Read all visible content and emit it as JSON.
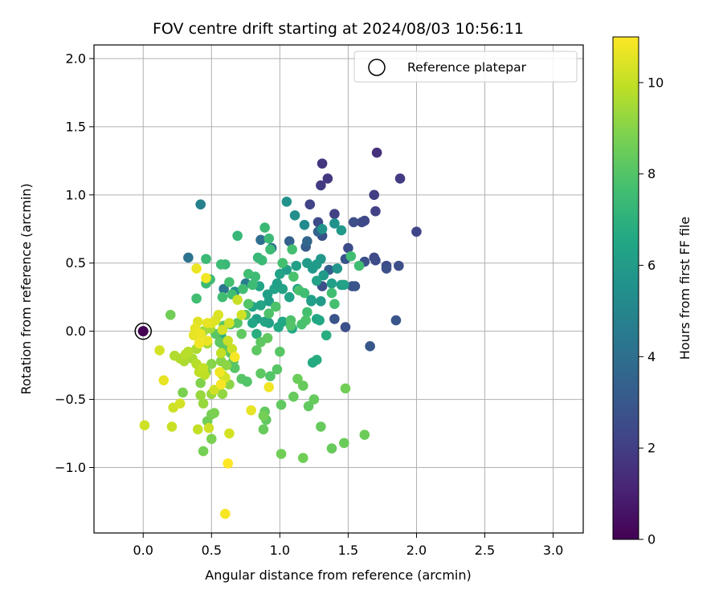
{
  "chart_data": {
    "type": "scatter",
    "title": "FOV centre drift starting at 2024/08/03 10:56:11",
    "xlabel": "Angular distance from reference (arcmin)",
    "ylabel": "Rotation from reference (arcmin)",
    "xlim": [
      -0.36,
      3.22
    ],
    "ylim": [
      -1.48,
      2.1
    ],
    "xticks": [
      0.0,
      0.5,
      1.0,
      1.5,
      2.0,
      2.5,
      3.0
    ],
    "xtick_labels": [
      "0.0",
      "0.5",
      "1.0",
      "1.5",
      "2.0",
      "2.5",
      "3.0"
    ],
    "yticks": [
      -1.0,
      -0.5,
      0.0,
      0.5,
      1.0,
      1.5,
      2.0
    ],
    "ytick_labels": [
      "−1.0",
      "−0.5",
      "0.0",
      "0.5",
      "1.0",
      "1.5",
      "2.0"
    ],
    "grid": true,
    "legend": {
      "position": "top-right",
      "entries": [
        "Reference platepar"
      ]
    },
    "colorbar": {
      "label": "Hours from first FF file",
      "range": [
        0,
        11
      ],
      "ticks": [
        0,
        2,
        4,
        6,
        8,
        10
      ],
      "tick_labels": [
        "0",
        "2",
        "4",
        "6",
        "8",
        "10"
      ],
      "colormap": "viridis"
    },
    "reference_point": {
      "x": 0.0,
      "y": 0.0,
      "hours": 0.0
    },
    "points": [
      [
        1.71,
        1.31,
        1.5
      ],
      [
        1.31,
        1.23,
        1.7
      ],
      [
        1.88,
        1.12,
        1.9
      ],
      [
        1.35,
        1.12,
        1.8
      ],
      [
        1.69,
        1.0,
        2.0
      ],
      [
        1.3,
        1.07,
        1.9
      ],
      [
        1.7,
        0.88,
        2.1
      ],
      [
        1.22,
        0.93,
        2.2
      ],
      [
        2.0,
        0.73,
        2.3
      ],
      [
        1.4,
        0.86,
        2.1
      ],
      [
        1.62,
        0.81,
        2.4
      ],
      [
        1.6,
        0.8,
        2.4
      ],
      [
        1.54,
        0.8,
        2.6
      ],
      [
        1.28,
        0.8,
        2.5
      ],
      [
        1.31,
        0.7,
        2.7
      ],
      [
        1.5,
        0.61,
        2.5
      ],
      [
        1.69,
        0.54,
        2.4
      ],
      [
        1.7,
        0.52,
        2.5
      ],
      [
        1.87,
        0.48,
        2.6
      ],
      [
        1.78,
        0.48,
        2.5
      ],
      [
        1.78,
        0.46,
        2.7
      ],
      [
        1.62,
        0.51,
        2.7
      ],
      [
        1.48,
        0.53,
        2.8
      ],
      [
        1.55,
        0.33,
        2.9
      ],
      [
        1.53,
        0.33,
        2.9
      ],
      [
        1.31,
        0.33,
        2.7
      ],
      [
        1.4,
        0.09,
        2.8
      ],
      [
        1.48,
        0.03,
        2.7
      ],
      [
        1.85,
        0.08,
        2.9
      ],
      [
        1.66,
        -0.11,
        3.0
      ],
      [
        1.36,
        0.45,
        3.3
      ],
      [
        1.19,
        0.62,
        3.2
      ],
      [
        1.07,
        0.66,
        3.4
      ],
      [
        1.28,
        0.73,
        3.5
      ],
      [
        1.2,
        0.66,
        3.6
      ],
      [
        0.86,
        0.67,
        4.0
      ],
      [
        0.94,
        0.61,
        4.2
      ],
      [
        0.33,
        0.54,
        4.2
      ],
      [
        0.59,
        0.31,
        4.3
      ],
      [
        0.75,
        0.35,
        4.6
      ],
      [
        0.42,
        0.93,
        4.8
      ],
      [
        1.18,
        0.78,
        5.2
      ],
      [
        1.4,
        0.79,
        5.5
      ],
      [
        1.11,
        0.85,
        5.4
      ],
      [
        1.05,
        0.95,
        5.6
      ],
      [
        1.45,
        0.74,
        5.9
      ],
      [
        1.31,
        0.75,
        5.6
      ],
      [
        0.67,
        0.29,
        5.4
      ],
      [
        1.42,
        0.46,
        5.7
      ],
      [
        1.3,
        0.53,
        5.8
      ],
      [
        1.27,
        0.49,
        6.0
      ],
      [
        1.24,
        0.46,
        5.9
      ],
      [
        1.32,
        0.41,
        5.9
      ],
      [
        1.2,
        0.5,
        6.0
      ],
      [
        1.12,
        0.48,
        6.2
      ],
      [
        1.05,
        0.45,
        6.1
      ],
      [
        1.0,
        0.42,
        6.3
      ],
      [
        1.27,
        0.37,
        6.3
      ],
      [
        1.13,
        0.31,
        6.2
      ],
      [
        1.07,
        0.25,
        6.3
      ],
      [
        1.23,
        0.23,
        6.3
      ],
      [
        1.3,
        0.22,
        6.0
      ],
      [
        1.38,
        0.35,
        6.2
      ],
      [
        1.45,
        0.34,
        6.1
      ],
      [
        1.47,
        0.34,
        6.3
      ],
      [
        1.23,
        0.22,
        6.2
      ],
      [
        1.02,
        0.31,
        6.3
      ],
      [
        0.96,
        0.31,
        6.3
      ],
      [
        0.98,
        0.35,
        6.2
      ],
      [
        0.85,
        0.33,
        6.4
      ],
      [
        0.91,
        0.27,
        6.2
      ],
      [
        0.92,
        0.22,
        6.1
      ],
      [
        0.86,
        0.19,
        6.4
      ],
      [
        0.8,
        0.18,
        6.5
      ],
      [
        0.83,
        0.09,
        6.1
      ],
      [
        0.92,
        0.06,
        6.3
      ],
      [
        0.89,
        0.07,
        6.4
      ],
      [
        0.8,
        0.06,
        6.5
      ],
      [
        1.02,
        0.07,
        6.5
      ],
      [
        0.99,
        0.03,
        6.6
      ],
      [
        1.09,
        0.02,
        6.6
      ],
      [
        1.27,
        0.09,
        6.5
      ],
      [
        1.29,
        0.08,
        6.6
      ],
      [
        1.27,
        -0.21,
        6.8
      ],
      [
        1.24,
        -0.23,
        6.7
      ],
      [
        1.34,
        -0.03,
        6.8
      ],
      [
        0.83,
        -0.02,
        6.9
      ],
      [
        0.57,
        -0.03,
        6.9
      ],
      [
        0.69,
        0.7,
        7.3
      ],
      [
        0.89,
        0.76,
        7.4
      ],
      [
        0.92,
        0.68,
        7.4
      ],
      [
        0.93,
        0.6,
        7.5
      ],
      [
        0.87,
        0.52,
        7.4
      ],
      [
        0.84,
        0.54,
        7.3
      ],
      [
        0.6,
        0.49,
        7.3
      ],
      [
        0.57,
        0.49,
        7.5
      ],
      [
        0.46,
        0.53,
        7.4
      ],
      [
        0.49,
        0.38,
        7.5
      ],
      [
        0.46,
        0.35,
        7.4
      ],
      [
        0.39,
        0.24,
        7.6
      ],
      [
        0.77,
        0.42,
        7.6
      ],
      [
        0.82,
        0.4,
        7.5
      ],
      [
        0.8,
        0.34,
        7.5
      ],
      [
        0.73,
        0.31,
        7.6
      ],
      [
        0.65,
        0.27,
        7.6
      ],
      [
        0.58,
        0.25,
        7.6
      ],
      [
        0.63,
        0.36,
        7.7
      ],
      [
        1.09,
        0.6,
        7.7
      ],
      [
        1.02,
        0.5,
        7.7
      ],
      [
        1.1,
        0.4,
        7.8
      ],
      [
        1.14,
        0.3,
        7.8
      ],
      [
        1.18,
        0.28,
        7.6
      ],
      [
        1.2,
        0.14,
        7.7
      ],
      [
        1.38,
        0.28,
        7.6
      ],
      [
        1.4,
        0.2,
        7.7
      ],
      [
        1.52,
        0.55,
        7.6
      ],
      [
        1.58,
        0.48,
        7.6
      ],
      [
        1.19,
        0.08,
        7.9
      ],
      [
        1.16,
        0.05,
        7.8
      ],
      [
        1.08,
        0.08,
        7.9
      ],
      [
        1.08,
        0.04,
        8.0
      ],
      [
        0.97,
        0.18,
        7.9
      ],
      [
        0.92,
        0.13,
        7.9
      ],
      [
        0.77,
        0.2,
        8.0
      ],
      [
        0.75,
        0.12,
        8.0
      ],
      [
        0.69,
        0.06,
        8.1
      ],
      [
        0.64,
        0.05,
        8.0
      ],
      [
        0.59,
        0.04,
        8.1
      ],
      [
        0.53,
        -0.02,
        8.1
      ],
      [
        0.56,
        -0.08,
        8.2
      ],
      [
        0.59,
        -0.12,
        8.2
      ],
      [
        0.64,
        -0.16,
        8.2
      ],
      [
        0.66,
        -0.22,
        8.0
      ],
      [
        0.67,
        -0.27,
        8.1
      ],
      [
        0.72,
        -0.35,
        8.1
      ],
      [
        0.76,
        -0.37,
        8.0
      ],
      [
        0.86,
        -0.31,
        8.2
      ],
      [
        0.93,
        -0.33,
        8.0
      ],
      [
        0.98,
        -0.28,
        8.1
      ],
      [
        1.0,
        -0.15,
        8.1
      ],
      [
        0.91,
        -0.05,
        8.3
      ],
      [
        0.86,
        -0.08,
        8.2
      ],
      [
        0.83,
        -0.14,
        8.2
      ],
      [
        0.72,
        -0.02,
        8.3
      ],
      [
        0.9,
        -0.65,
        8.3
      ],
      [
        0.89,
        -0.59,
        8.3
      ],
      [
        0.88,
        -0.72,
        8.4
      ],
      [
        1.01,
        -0.54,
        8.3
      ],
      [
        1.1,
        -0.48,
        8.4
      ],
      [
        1.21,
        -0.55,
        8.3
      ],
      [
        1.25,
        -0.5,
        8.4
      ],
      [
        1.13,
        -0.35,
        8.5
      ],
      [
        1.17,
        -0.4,
        8.4
      ],
      [
        1.3,
        -0.7,
        8.4
      ],
      [
        1.38,
        -0.86,
        8.4
      ],
      [
        1.47,
        -0.82,
        8.5
      ],
      [
        1.48,
        -0.42,
        8.6
      ],
      [
        1.62,
        -0.76,
        8.5
      ],
      [
        1.17,
        -0.93,
        8.6
      ],
      [
        1.01,
        -0.9,
        8.6
      ],
      [
        0.88,
        -0.62,
        8.7
      ],
      [
        0.2,
        0.12,
        8.6
      ],
      [
        0.44,
        -0.88,
        8.7
      ],
      [
        0.47,
        -0.66,
        8.6
      ],
      [
        0.5,
        -0.61,
        8.7
      ],
      [
        0.52,
        -0.6,
        8.8
      ],
      [
        0.5,
        -0.79,
        8.8
      ],
      [
        0.29,
        -0.45,
        8.8
      ],
      [
        0.42,
        -0.38,
        8.9
      ],
      [
        0.46,
        -0.3,
        8.9
      ],
      [
        0.5,
        -0.24,
        9.0
      ],
      [
        0.57,
        -0.22,
        9.0
      ],
      [
        0.61,
        -0.25,
        9.1
      ],
      [
        0.63,
        -0.39,
        9.1
      ],
      [
        0.58,
        -0.46,
        9.2
      ],
      [
        0.42,
        -0.47,
        9.3
      ],
      [
        0.44,
        -0.53,
        9.3
      ],
      [
        0.5,
        -0.46,
        9.3
      ],
      [
        0.44,
        0.0,
        9.4
      ],
      [
        0.49,
        0.02,
        9.5
      ],
      [
        0.47,
        -0.09,
        9.5
      ],
      [
        0.39,
        -0.13,
        9.6
      ],
      [
        0.36,
        -0.2,
        9.6
      ],
      [
        0.3,
        -0.22,
        9.6
      ],
      [
        0.27,
        -0.2,
        9.7
      ],
      [
        0.23,
        -0.18,
        9.7
      ],
      [
        0.31,
        -0.17,
        9.8
      ],
      [
        0.33,
        -0.15,
        9.8
      ],
      [
        0.39,
        -0.24,
        9.8
      ],
      [
        0.41,
        -0.3,
        9.9
      ],
      [
        0.45,
        -0.32,
        9.9
      ],
      [
        0.44,
        -0.27,
        10.0
      ],
      [
        0.57,
        -0.16,
        10.0
      ],
      [
        0.62,
        -0.07,
        10.1
      ],
      [
        0.65,
        -0.13,
        10.1
      ],
      [
        0.58,
        -0.32,
        10.1
      ],
      [
        0.52,
        -0.43,
        10.2
      ],
      [
        0.6,
        -0.34,
        10.3
      ],
      [
        0.69,
        0.23,
        10.1
      ],
      [
        0.72,
        0.12,
        10.2
      ],
      [
        0.63,
        0.06,
        10.3
      ],
      [
        0.58,
        0.01,
        10.3
      ],
      [
        0.53,
        0.08,
        10.4
      ],
      [
        0.55,
        0.12,
        10.4
      ],
      [
        0.5,
        0.06,
        10.5
      ],
      [
        0.47,
        0.06,
        10.6
      ],
      [
        0.4,
        0.07,
        10.5
      ],
      [
        0.38,
        0.02,
        10.6
      ],
      [
        0.37,
        -0.03,
        10.6
      ],
      [
        0.42,
        -0.02,
        10.7
      ],
      [
        0.47,
        -0.07,
        10.7
      ],
      [
        0.41,
        -0.09,
        10.8
      ],
      [
        0.56,
        -0.3,
        10.8
      ],
      [
        0.57,
        -0.39,
        10.9
      ],
      [
        0.67,
        -0.19,
        10.9
      ],
      [
        0.92,
        -0.41,
        10.8
      ],
      [
        0.79,
        -0.58,
        10.6
      ],
      [
        0.48,
        -0.71,
        10.2
      ],
      [
        0.4,
        -0.72,
        10.0
      ],
      [
        0.21,
        -0.7,
        10.1
      ],
      [
        0.22,
        -0.56,
        10.2
      ],
      [
        0.27,
        -0.53,
        10.3
      ],
      [
        0.15,
        -0.36,
        10.6
      ],
      [
        0.12,
        -0.14,
        10.3
      ],
      [
        0.01,
        -0.69,
        10.2
      ],
      [
        0.39,
        0.46,
        10.7
      ],
      [
        0.46,
        0.39,
        10.8
      ],
      [
        0.63,
        -0.75,
        10.3
      ],
      [
        0.62,
        -0.97,
        11.0
      ],
      [
        0.6,
        -1.34,
        10.9
      ]
    ]
  }
}
